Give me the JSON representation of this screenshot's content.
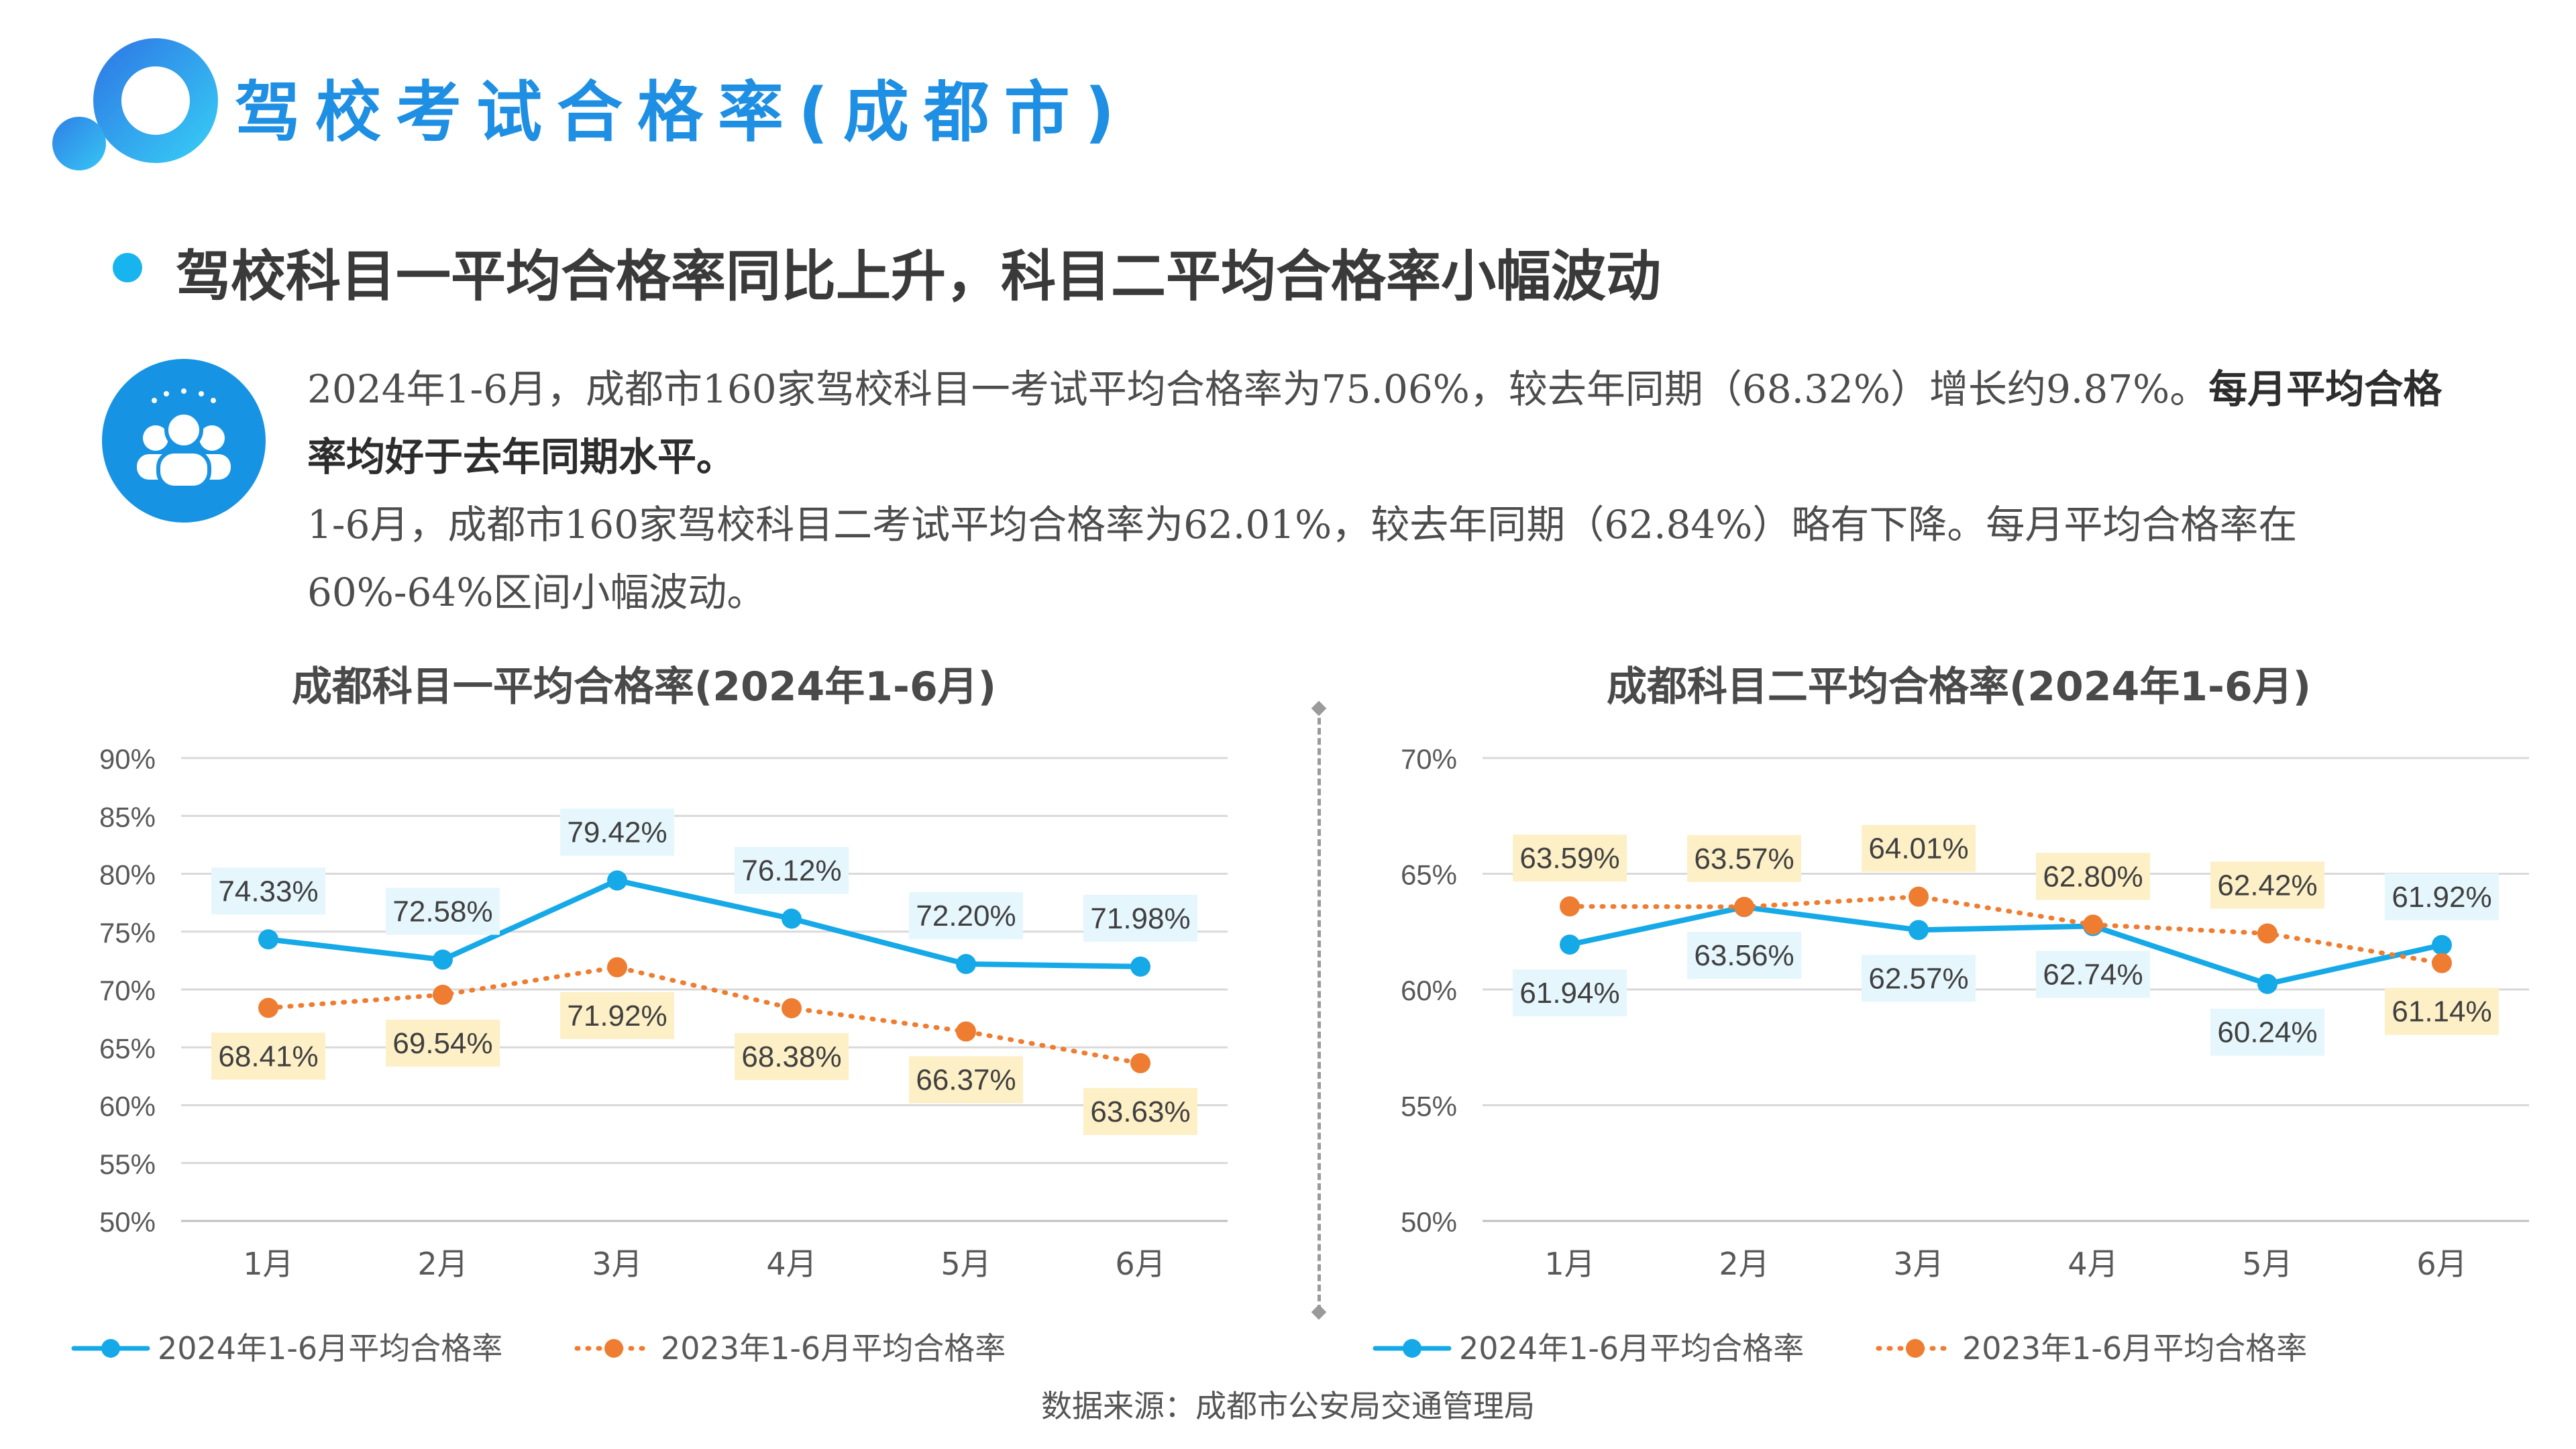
{
  "page_title": "驾校考试合格率(成都市)",
  "subtitle": "驾校科目一平均合格率同比上升，科目二平均合格率小幅波动",
  "description": {
    "p1_normal": "2024年1-6月，成都市160家驾校科目一考试平均合格率为75.06%，较去年同期（68.32%）增长约9.87%。",
    "p1_bold": "每月平均合格率均好于去年同期水平。",
    "p2": "1-6月，成都市160家驾校科目二考试平均合格率为62.01%，较去年同期（62.84%）略有下降。每月平均合格率在60%-64%区间小幅波动。"
  },
  "source": "数据来源：成都市公安局交通管理局",
  "colors": {
    "accent": "#1e8fe3",
    "series_2024": "#16a9e8",
    "series_2023": "#ee7d31",
    "label_2024_bg": "#e6f6fd",
    "label_2023_bg": "#fdefc6"
  },
  "icons": {
    "logo": "circle-logo-icon",
    "people": "people-group-icon"
  },
  "chart_data": [
    {
      "type": "line",
      "title": "成都科目一平均合格率(2024年1-6月)",
      "categories": [
        "1月",
        "2月",
        "3月",
        "4月",
        "5月",
        "6月"
      ],
      "y_ticks": [
        "90%",
        "85%",
        "80%",
        "75%",
        "70%",
        "65%",
        "60%",
        "55%",
        "50%"
      ],
      "ylim": [
        50,
        90
      ],
      "grid": true,
      "legend": "bottom",
      "series": [
        {
          "name": "2024年1-6月平均合格率",
          "style": "solid",
          "values": [
            74.33,
            72.58,
            79.42,
            76.12,
            72.2,
            71.98
          ],
          "labels": [
            "74.33%",
            "72.58%",
            "79.42%",
            "76.12%",
            "72.20%",
            "71.98%"
          ]
        },
        {
          "name": "2023年1-6月平均合格率",
          "style": "dotted",
          "values": [
            68.41,
            69.54,
            71.92,
            68.38,
            66.37,
            63.63
          ],
          "labels": [
            "68.41%",
            "69.54%",
            "71.92%",
            "68.38%",
            "66.37%",
            "63.63%"
          ]
        }
      ]
    },
    {
      "type": "line",
      "title": "成都科目二平均合格率(2024年1-6月)",
      "categories": [
        "1月",
        "2月",
        "3月",
        "4月",
        "5月",
        "6月"
      ],
      "y_ticks": [
        "70%",
        "65%",
        "60%",
        "55%",
        "50%"
      ],
      "ylim": [
        50,
        70
      ],
      "grid": true,
      "legend": "bottom",
      "series": [
        {
          "name": "2024年1-6月平均合格率",
          "style": "solid",
          "values": [
            61.94,
            63.56,
            62.57,
            62.74,
            60.24,
            61.92
          ],
          "labels": [
            "61.94%",
            "63.56%",
            "62.57%",
            "62.74%",
            "60.24%",
            "61.92%"
          ]
        },
        {
          "name": "2023年1-6月平均合格率",
          "style": "dotted",
          "values": [
            63.59,
            63.57,
            64.01,
            62.8,
            62.42,
            61.14
          ],
          "labels": [
            "63.59%",
            "63.57%",
            "64.01%",
            "62.80%",
            "62.42%",
            "61.14%"
          ]
        }
      ]
    }
  ]
}
